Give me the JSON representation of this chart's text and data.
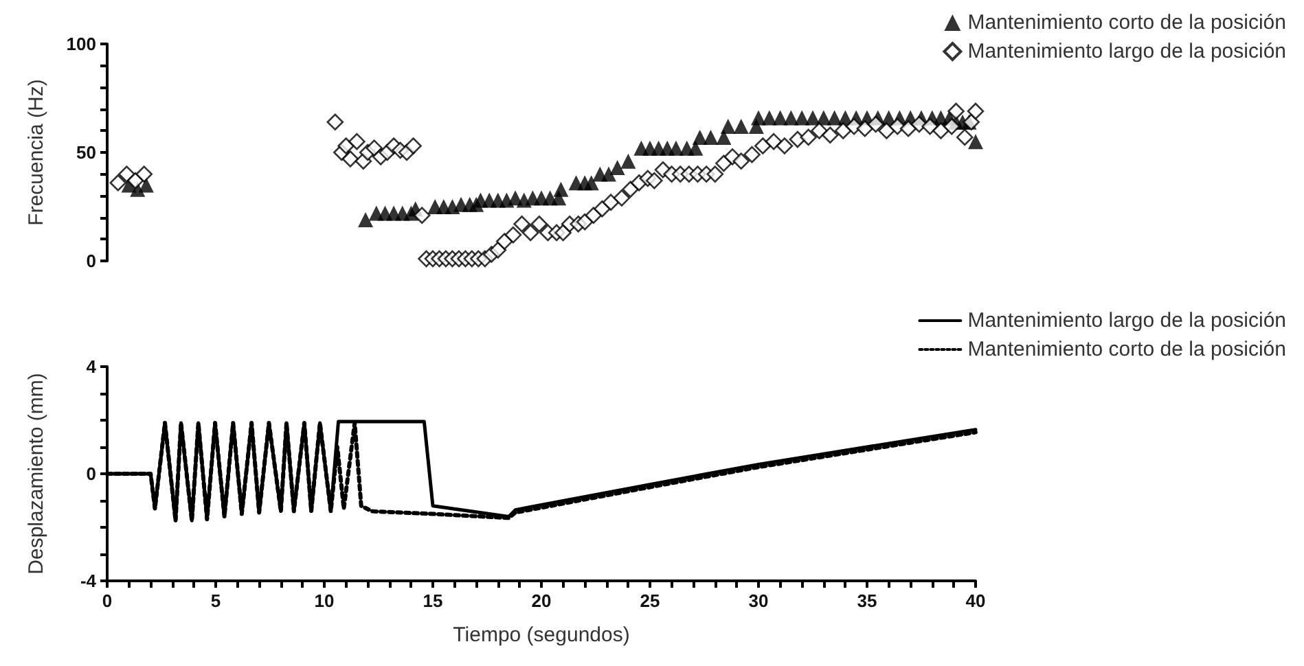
{
  "chart_data": [
    {
      "type": "scatter",
      "ylabel": "Frecuencia (Hz)",
      "xlim": [
        0,
        40
      ],
      "xticks": [
        0,
        5,
        10,
        15,
        20,
        25,
        30,
        35,
        40
      ],
      "ylim": [
        0,
        100
      ],
      "yticks": [
        0,
        {
          "value": 10,
          "label": null
        },
        {
          "value": 20,
          "label": null
        },
        {
          "value": 30,
          "label": null
        },
        {
          "value": 40,
          "label": null
        },
        50,
        {
          "value": 60,
          "label": null
        },
        {
          "value": 70,
          "label": null
        },
        {
          "value": 80,
          "label": null
        },
        {
          "value": 90,
          "label": null
        },
        100
      ],
      "tick_labels": "y",
      "grid": false,
      "legend": "top right",
      "series": [
        {
          "name": "Mantenimiento corto de la posición",
          "color": "#000000",
          "marker": "triangle",
          "x": [
            1.0,
            1.4,
            1.8,
            11.9,
            12.4,
            12.8,
            13.2,
            13.6,
            14.0,
            14.2,
            15.1,
            15.5,
            15.9,
            16.3,
            16.7,
            17.0,
            17.2,
            17.6,
            18.0,
            18.4,
            18.8,
            19.2,
            19.6,
            20.0,
            20.4,
            20.8,
            20.9,
            21.6,
            22.0,
            22.3,
            22.7,
            23.1,
            23.5,
            24.0,
            24.6,
            25.0,
            25.4,
            25.8,
            26.2,
            26.7,
            27.1,
            27.3,
            27.8,
            28.4,
            28.6,
            29.2,
            29.9,
            30.0,
            30.5,
            31.0,
            31.5,
            32.0,
            32.5,
            33.0,
            33.5,
            34.0,
            34.5,
            35.0,
            35.5,
            36.0,
            36.5,
            37.0,
            37.5,
            38.0,
            38.4,
            38.8,
            39.1,
            39.4,
            39.7,
            40.0
          ],
          "values": [
            35,
            33,
            35,
            19,
            22,
            22,
            22,
            22,
            22,
            24,
            25,
            25,
            25,
            26,
            26,
            26,
            28,
            28,
            28,
            28,
            29,
            28,
            29,
            29,
            29,
            29,
            33,
            36,
            36,
            36,
            40,
            40,
            43,
            46,
            52,
            52,
            52,
            52,
            52,
            52,
            52,
            57,
            57,
            57,
            62,
            62,
            62,
            66,
            66,
            66,
            66,
            66,
            66,
            66,
            66,
            66,
            66,
            66,
            66,
            66,
            66,
            66,
            66,
            66,
            66,
            66,
            64,
            64,
            64,
            55
          ]
        },
        {
          "name": "Mantenimiento largo de la posición",
          "color": "#000000",
          "marker": "diamond",
          "x": [
            0.5,
            0.9,
            1.3,
            1.7,
            10.5,
            10.8,
            11.0,
            11.2,
            11.5,
            11.8,
            12.0,
            12.3,
            12.6,
            12.9,
            13.2,
            13.5,
            13.8,
            14.1,
            14.5,
            14.7,
            15.0,
            15.3,
            15.6,
            15.9,
            16.2,
            16.5,
            16.8,
            17.1,
            17.4,
            17.7,
            18.0,
            18.3,
            18.7,
            19.1,
            19.5,
            19.9,
            20.3,
            20.7,
            21.0,
            21.3,
            21.7,
            22.0,
            22.4,
            22.8,
            23.2,
            23.7,
            24.1,
            24.5,
            24.9,
            25.2,
            25.6,
            26.0,
            26.4,
            26.8,
            27.2,
            27.6,
            28.0,
            28.4,
            28.8,
            29.2,
            29.7,
            30.2,
            30.7,
            31.2,
            31.8,
            32.3,
            32.8,
            33.3,
            33.9,
            34.4,
            34.9,
            35.4,
            35.9,
            36.4,
            36.9,
            37.4,
            37.9,
            38.4,
            38.9,
            39.1,
            39.5,
            39.8,
            40.0
          ],
          "values": [
            36,
            40,
            37,
            40,
            64,
            50,
            53,
            47,
            55,
            46,
            50,
            52,
            48,
            50,
            53,
            51,
            50,
            53,
            21,
            1,
            1,
            1,
            1,
            1,
            1,
            1,
            1,
            1,
            1,
            3,
            5,
            9,
            12,
            17,
            13,
            17,
            13,
            13,
            13,
            17,
            17,
            18,
            21,
            24,
            27,
            29,
            33,
            36,
            38,
            37,
            42,
            40,
            40,
            40,
            40,
            40,
            40,
            45,
            48,
            46,
            49,
            53,
            55,
            53,
            56,
            57,
            60,
            58,
            60,
            62,
            61,
            63,
            60,
            62,
            61,
            63,
            62,
            60,
            62,
            69,
            57,
            64,
            69
          ]
        }
      ]
    },
    {
      "type": "line",
      "xlabel": "Tiempo (segundos)",
      "ylabel": "Desplazamiento (mm)",
      "xlim": [
        0,
        40
      ],
      "ylim": [
        -4,
        4
      ],
      "xticks": [
        0,
        {
          "value": 1,
          "label": null
        },
        {
          "value": 2,
          "label": null
        },
        {
          "value": 3,
          "label": null
        },
        {
          "value": 4,
          "label": null
        },
        5,
        {
          "value": 6,
          "label": null
        },
        {
          "value": 7,
          "label": null
        },
        {
          "value": 8,
          "label": null
        },
        {
          "value": 9,
          "label": null
        },
        10,
        {
          "value": 11,
          "label": null
        },
        {
          "value": 12,
          "label": null
        },
        {
          "value": 13,
          "label": null
        },
        {
          "value": 14,
          "label": null
        },
        15,
        {
          "value": 16,
          "label": null
        },
        {
          "value": 17,
          "label": null
        },
        {
          "value": 18,
          "label": null
        },
        {
          "value": 19,
          "label": null
        },
        20,
        {
          "value": 21,
          "label": null
        },
        {
          "value": 22,
          "label": null
        },
        {
          "value": 23,
          "label": null
        },
        {
          "value": 24,
          "label": null
        },
        25,
        {
          "value": 26,
          "label": null
        },
        {
          "value": 27,
          "label": null
        },
        {
          "value": 28,
          "label": null
        },
        {
          "value": 29,
          "label": null
        },
        30,
        {
          "value": 31,
          "label": null
        },
        {
          "value": 32,
          "label": null
        },
        {
          "value": 33,
          "label": null
        },
        {
          "value": 34,
          "label": null
        },
        35,
        {
          "value": 36,
          "label": null
        },
        {
          "value": 37,
          "label": null
        },
        {
          "value": 38,
          "label": null
        },
        {
          "value": 39,
          "label": null
        },
        40
      ],
      "yticks": [
        -4,
        {
          "value": -3,
          "label": null
        },
        {
          "value": -2,
          "label": null
        },
        {
          "value": -1,
          "label": null
        },
        0,
        {
          "value": 1,
          "label": null
        },
        {
          "value": 2,
          "label": null
        },
        {
          "value": 3,
          "label": null
        },
        4
      ],
      "grid": false,
      "legend": "top right",
      "series": [
        {
          "name": "Mantenimiento largo de la posición",
          "color": "#000000",
          "line_style": "solid",
          "x": [
            0,
            2.0,
            2.2,
            2.66,
            3.15,
            3.4,
            3.9,
            4.2,
            4.6,
            4.97,
            5.4,
            5.8,
            6.2,
            6.65,
            7.0,
            7.45,
            8.0,
            8.26,
            8.6,
            9.08,
            9.4,
            9.8,
            10.3,
            10.65,
            14.6,
            15.0,
            18.5,
            18.8,
            25,
            30,
            35,
            40
          ],
          "values": [
            0,
            0,
            -1.3,
            1.9,
            -1.75,
            1.9,
            -1.75,
            1.9,
            -1.7,
            1.9,
            -1.6,
            1.9,
            -1.5,
            1.9,
            -1.45,
            1.9,
            -1.4,
            1.9,
            -1.4,
            1.9,
            -1.4,
            1.9,
            -1.4,
            1.95,
            1.95,
            -1.2,
            -1.6,
            -1.35,
            -0.4,
            0.35,
            1.0,
            1.65
          ]
        },
        {
          "name": "Mantenimiento corto de la posición",
          "color": "#000000",
          "line_style": "dotted",
          "x": [
            0,
            2.0,
            2.2,
            2.66,
            3.15,
            3.4,
            3.9,
            4.2,
            4.6,
            4.97,
            5.4,
            5.8,
            6.2,
            6.65,
            7.0,
            7.45,
            8.0,
            8.26,
            8.6,
            9.08,
            9.4,
            9.8,
            10.3,
            10.6,
            10.9,
            11.4,
            11.7,
            12.2,
            15.0,
            18.5,
            18.8,
            25,
            30,
            35,
            40
          ],
          "values": [
            0,
            0,
            -1.3,
            1.9,
            -1.75,
            1.9,
            -1.75,
            1.9,
            -1.7,
            1.9,
            -1.6,
            1.9,
            -1.5,
            1.9,
            -1.45,
            1.9,
            -1.4,
            1.9,
            -1.4,
            1.9,
            -1.4,
            1.9,
            -1.4,
            1.0,
            -1.3,
            1.9,
            -1.2,
            -1.4,
            -1.5,
            -1.65,
            -1.45,
            -0.5,
            0.25,
            0.9,
            1.55
          ]
        }
      ]
    }
  ]
}
